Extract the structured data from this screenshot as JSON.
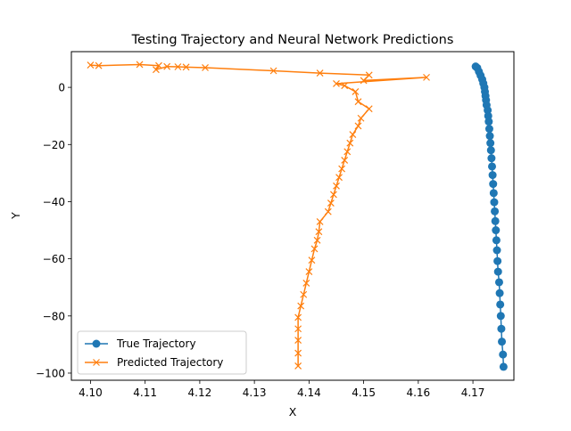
{
  "chart_data": {
    "type": "line",
    "title": "Testing Trajectory and Neural Network Predictions",
    "xlabel": "X",
    "ylabel": "Y",
    "xlim": [
      4.0965,
      4.1775
    ],
    "ylim": [
      -102.5,
      12.5
    ],
    "xticks": [
      4.1,
      4.11,
      4.12,
      4.13,
      4.14,
      4.15,
      4.16,
      4.17
    ],
    "xtick_labels": [
      "4.10",
      "4.11",
      "4.12",
      "4.13",
      "4.14",
      "4.15",
      "4.16",
      "4.17"
    ],
    "yticks": [
      0,
      -20,
      -40,
      -60,
      -80,
      -100
    ],
    "ytick_labels": [
      "0",
      "−20",
      "−40",
      "−60",
      "−80",
      "−100"
    ],
    "grid": false,
    "legend": "lower-left",
    "series": [
      {
        "name": "True Trajectory",
        "color": "#1f77b4",
        "marker": "circle",
        "x": [
          4.1705,
          4.1708,
          4.1711,
          4.1714,
          4.1717,
          4.1719,
          4.1721,
          4.1722,
          4.1723,
          4.1724,
          4.1725,
          4.1727,
          4.1728,
          4.1729,
          4.173,
          4.1731,
          4.1732,
          4.1733,
          4.1734,
          4.1735,
          4.1736,
          4.1737,
          4.1738,
          4.1739,
          4.174,
          4.1741,
          4.1742,
          4.1743,
          4.1744,
          4.1745,
          4.1746,
          4.1748,
          4.1749,
          4.175,
          4.1751,
          4.1752,
          4.1753,
          4.1755,
          4.1756
        ],
        "y": [
          7.3,
          6.8,
          5.5,
          4.2,
          2.8,
          1.4,
          0.0,
          -1.5,
          -3.0,
          -4.5,
          -6.2,
          -8.0,
          -10.0,
          -12.0,
          -14.5,
          -17.0,
          -19.5,
          -22.0,
          -24.8,
          -27.7,
          -30.7,
          -33.8,
          -37.0,
          -40.2,
          -43.4,
          -46.8,
          -50.0,
          -53.5,
          -57.0,
          -60.8,
          -64.5,
          -68.2,
          -72.0,
          -76.0,
          -80.0,
          -84.5,
          -89.0,
          -93.5,
          -97.8
        ]
      },
      {
        "name": "Predicted Trajectory",
        "color": "#ff7f0e",
        "marker": "x",
        "x": [
          4.1,
          4.1015,
          4.109,
          4.1125,
          4.112,
          4.114,
          4.116,
          4.1175,
          4.121,
          4.1335,
          4.142,
          4.151,
          4.15,
          4.1615,
          4.145,
          4.1465,
          4.1485,
          4.149,
          4.151,
          4.1495,
          4.149,
          4.148,
          4.1475,
          4.147,
          4.1465,
          4.146,
          4.1455,
          4.145,
          4.1445,
          4.144,
          4.1435,
          4.142,
          4.1418,
          4.1415,
          4.141,
          4.1405,
          4.14,
          4.1395,
          4.139,
          4.1385,
          4.138,
          4.138,
          4.138,
          4.138,
          4.138
        ],
        "y": [
          7.8,
          7.6,
          8.0,
          7.6,
          6.2,
          7.3,
          7.2,
          7.1,
          6.9,
          5.8,
          5.0,
          4.3,
          2.4,
          3.5,
          1.3,
          0.6,
          -1.5,
          -5.0,
          -7.5,
          -10.8,
          -13.5,
          -16.5,
          -19.5,
          -22.5,
          -25.5,
          -28.5,
          -31.5,
          -34.5,
          -37.5,
          -40.5,
          -43.5,
          -47.0,
          -50.5,
          -53.5,
          -56.5,
          -60.5,
          -64.5,
          -68.5,
          -72.5,
          -76.5,
          -80.5,
          -84.5,
          -88.5,
          -93.0,
          -97.5
        ]
      }
    ]
  }
}
